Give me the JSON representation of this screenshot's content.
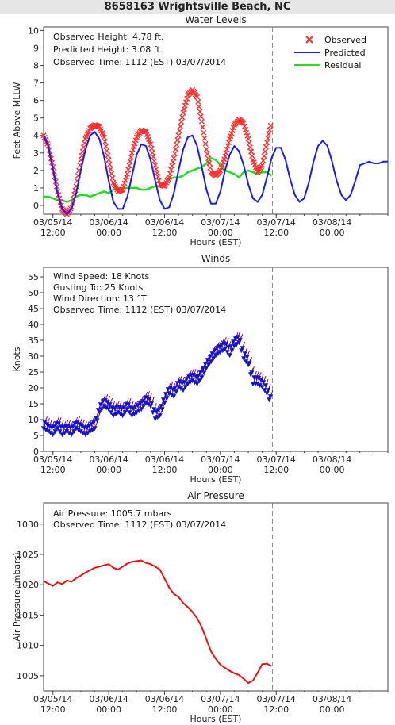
{
  "station_title": "8658163 Wrightsville Beach, NC",
  "colors": {
    "observed": "#ff3030",
    "predicted": "#1a1aff",
    "residual": "#22dd22",
    "wind": "#1212cc",
    "wind_barb": "#800080",
    "pressure": "#ee1111",
    "now_line": "#888888"
  },
  "x_axis": {
    "label": "Hours (EST)",
    "ticks": [
      {
        "date": "03/05/14",
        "time": "12:00",
        "t": 0
      },
      {
        "date": "03/06/14",
        "time": "00:00",
        "t": 12
      },
      {
        "date": "03/06/14",
        "time": "12:00",
        "t": 24
      },
      {
        "date": "03/07/14",
        "time": "00:00",
        "t": 36
      },
      {
        "date": "03/07/14",
        "time": "12:00",
        "t": 48
      },
      {
        "date": "03/08/14",
        "time": "00:00",
        "t": 60
      }
    ],
    "range_hours": [
      -2,
      72
    ],
    "observed_time_hour": 47.2
  },
  "chart_data": [
    {
      "type": "line",
      "title": "Water Levels",
      "ylabel": "Feet Above MLLW",
      "xlabel": "Hours (EST)",
      "ylim": [
        -0.5,
        10.2
      ],
      "yticks": [
        0,
        1,
        2,
        3,
        4,
        5,
        6,
        7,
        8,
        9,
        10
      ],
      "info": [
        "Observed Height:   4.78 ft.",
        "Predicted Height:   3.08 ft.",
        "Observed Time: 1112 (EST) 03/07/2014"
      ],
      "legend": [
        "Observed",
        "Predicted",
        "Residual"
      ],
      "legend_position": "top-right",
      "series": [
        {
          "name": "Predicted",
          "x": [
            -2,
            -1,
            0,
            1,
            2,
            3,
            4,
            5,
            6,
            7,
            8,
            9,
            10,
            11,
            12,
            13,
            14,
            15,
            16,
            17,
            18,
            19,
            20,
            21,
            22,
            23,
            24,
            25,
            26,
            27,
            28,
            29,
            30,
            31,
            32,
            33,
            34,
            35,
            36,
            37,
            38,
            39,
            40,
            41,
            42,
            43,
            44,
            45,
            46,
            47,
            48,
            49,
            50,
            51,
            52,
            53,
            54,
            55,
            56,
            57,
            58,
            59,
            60,
            61,
            62,
            63,
            64,
            65,
            66,
            67,
            68,
            69,
            70,
            71,
            72
          ],
          "values": [
            4.0,
            3.4,
            2.1,
            0.7,
            -0.2,
            -0.5,
            -0.2,
            0.7,
            2.0,
            3.2,
            4.0,
            4.2,
            3.8,
            2.8,
            1.4,
            0.2,
            -0.2,
            -0.2,
            0.5,
            1.7,
            2.9,
            3.5,
            3.4,
            2.6,
            1.4,
            0.3,
            -0.2,
            -0.1,
            0.7,
            2.0,
            3.2,
            3.9,
            4.0,
            3.4,
            2.2,
            0.9,
            0.1,
            0.1,
            0.8,
            2.0,
            2.9,
            3.4,
            3.1,
            2.3,
            1.2,
            0.4,
            0.2,
            0.6,
            1.6,
            2.7,
            3.3,
            3.3,
            2.6,
            1.5,
            0.6,
            0.2,
            0.4,
            1.3,
            2.5,
            3.4,
            3.7,
            3.4,
            2.5,
            1.4,
            0.6,
            0.3,
            0.6,
            1.4,
            2.3,
            2.4,
            2.5,
            2.4,
            2.4,
            2.5,
            2.5
          ]
        },
        {
          "name": "Observed",
          "x": [
            -2,
            -1,
            0,
            1,
            2,
            3,
            4,
            5,
            6,
            7,
            8,
            9,
            10,
            11,
            12,
            13,
            14,
            15,
            16,
            17,
            18,
            19,
            20,
            21,
            22,
            23,
            24,
            25,
            26,
            27,
            28,
            29,
            30,
            31,
            32,
            33,
            34,
            35,
            36,
            37,
            38,
            39,
            40,
            41,
            42,
            43,
            44,
            45,
            46,
            47
          ],
          "values": [
            4.0,
            3.4,
            2.2,
            0.8,
            -0.2,
            -0.5,
            -0.1,
            1.1,
            2.6,
            3.8,
            4.4,
            4.6,
            4.5,
            3.9,
            2.6,
            1.3,
            0.8,
            0.9,
            1.8,
            3.0,
            3.9,
            4.3,
            4.2,
            3.5,
            2.3,
            1.2,
            1.1,
            1.6,
            2.7,
            4.0,
            5.3,
            6.3,
            6.6,
            6.2,
            4.8,
            3.2,
            1.9,
            1.7,
            2.0,
            2.8,
            3.8,
            4.6,
            4.9,
            4.7,
            3.8,
            2.6,
            1.9,
            2.3,
            3.6,
            4.8
          ]
        },
        {
          "name": "Residual",
          "x": [
            -2,
            -1,
            0,
            1,
            2,
            3,
            4,
            5,
            6,
            7,
            8,
            9,
            10,
            11,
            12,
            13,
            14,
            15,
            16,
            17,
            18,
            19,
            20,
            21,
            22,
            23,
            24,
            25,
            26,
            27,
            28,
            29,
            30,
            31,
            32,
            33,
            34,
            35,
            36,
            37,
            38,
            39,
            40,
            41,
            42,
            43,
            44,
            45,
            46,
            47
          ],
          "values": [
            0.5,
            0.5,
            0.4,
            0.3,
            0.3,
            0.2,
            0.3,
            0.5,
            0.6,
            0.6,
            0.5,
            0.6,
            0.7,
            0.8,
            0.7,
            0.9,
            1.0,
            1.0,
            1.0,
            1.0,
            1.0,
            0.9,
            0.9,
            1.0,
            1.1,
            1.1,
            1.2,
            1.5,
            1.6,
            1.6,
            1.7,
            1.9,
            2.0,
            2.1,
            2.2,
            2.4,
            2.7,
            2.6,
            2.3,
            2.0,
            1.9,
            1.8,
            1.6,
            1.9,
            2.0,
            1.9,
            1.8,
            1.9,
            1.9,
            1.7
          ]
        }
      ]
    },
    {
      "type": "scatter",
      "title": "Winds",
      "ylabel": "Knots",
      "xlabel": "Hours (EST)",
      "ylim": [
        0,
        58
      ],
      "yticks": [
        0,
        5,
        10,
        15,
        20,
        25,
        30,
        35,
        40,
        45,
        50,
        55
      ],
      "info": [
        "Wind Speed: 18 Knots",
        "Gusting To: 25 Knots",
        "Wind Direction: 13 °T",
        "Observed Time: 1112 (EST) 03/07/2014"
      ],
      "series": [
        {
          "name": "Wind Speed",
          "x": [
            -2,
            -1,
            0,
            1,
            2,
            3,
            4,
            5,
            6,
            7,
            8,
            9,
            10,
            11,
            12,
            13,
            14,
            15,
            16,
            17,
            18,
            19,
            20,
            21,
            22,
            23,
            24,
            25,
            26,
            27,
            28,
            29,
            30,
            31,
            32,
            33,
            34,
            35,
            36,
            37,
            38,
            39,
            40,
            41,
            42,
            43,
            44,
            45,
            46,
            47
          ],
          "values": [
            8,
            7,
            6,
            8,
            6,
            7,
            6,
            8,
            7,
            6,
            7,
            8,
            13,
            15,
            14,
            12,
            13,
            12,
            14,
            12,
            13,
            14,
            16,
            15,
            11,
            12,
            16,
            19,
            18,
            21,
            20,
            22,
            23,
            22,
            24,
            27,
            29,
            31,
            32,
            33,
            31,
            34,
            35,
            30,
            28,
            22,
            22,
            21,
            19,
            15
          ]
        }
      ]
    },
    {
      "type": "line",
      "title": "Air Pressure",
      "ylabel": "Air Pressure (mbars)",
      "xlabel": "Hours (EST)",
      "ylim": [
        1002.5,
        1033.5
      ],
      "yticks": [
        1005,
        1010,
        1015,
        1020,
        1025,
        1030
      ],
      "info": [
        "Air Pressure: 1005.7 mbars",
        "Observed Time: 1112 (EST) 03/07/2014"
      ],
      "series": [
        {
          "name": "Air Pressure",
          "x": [
            -2,
            -1,
            0,
            1,
            2,
            3,
            4,
            5,
            6,
            7,
            8,
            9,
            10,
            11,
            12,
            13,
            14,
            15,
            16,
            17,
            18,
            19,
            20,
            21,
            22,
            23,
            24,
            25,
            26,
            27,
            28,
            29,
            30,
            31,
            32,
            33,
            34,
            35,
            36,
            37,
            38,
            39,
            40,
            41,
            42,
            43,
            44,
            45,
            46,
            47
          ],
          "values": [
            1020.6,
            1020.2,
            1019.8,
            1020.4,
            1020.1,
            1020.7,
            1020.5,
            1021.1,
            1021.5,
            1022.0,
            1022.4,
            1022.8,
            1023.0,
            1023.2,
            1023.4,
            1022.8,
            1022.5,
            1023.0,
            1023.5,
            1023.8,
            1023.9,
            1024.0,
            1023.6,
            1023.4,
            1023.0,
            1022.5,
            1021.0,
            1019.5,
            1018.5,
            1018.0,
            1017.0,
            1016.3,
            1015.5,
            1014.5,
            1013.0,
            1011.0,
            1009.0,
            1007.8,
            1006.8,
            1006.3,
            1005.8,
            1005.4,
            1005.1,
            1004.5,
            1003.8,
            1004.2,
            1005.5,
            1006.9,
            1007.0,
            1006.6
          ]
        }
      ]
    }
  ]
}
